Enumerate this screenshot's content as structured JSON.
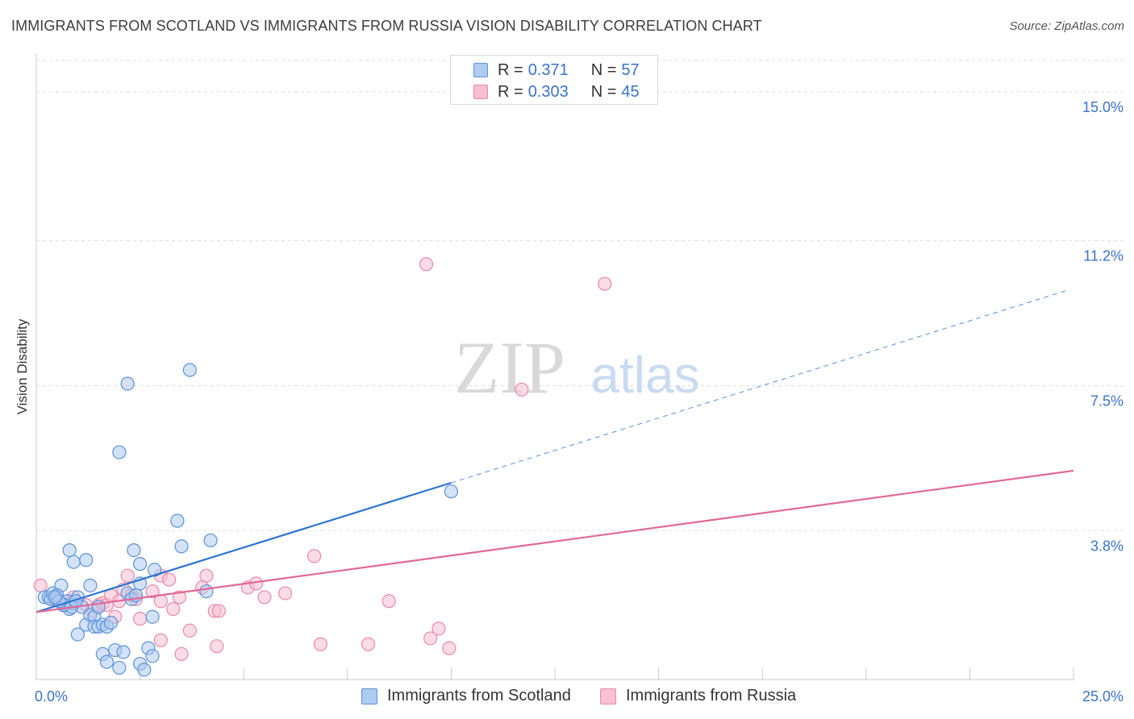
{
  "title": "IMMIGRANTS FROM SCOTLAND VS IMMIGRANTS FROM RUSSIA VISION DISABILITY CORRELATION CHART",
  "source": "Source: ZipAtlas.com",
  "watermark": {
    "zip": "ZIP",
    "atlas": "atlas"
  },
  "legend_top": {
    "r_label": "R =",
    "n_label": "N =",
    "rows": [
      {
        "name": "Immigrants from Scotland",
        "r": "0.371",
        "n": "57"
      },
      {
        "name": "Immigrants from Russia",
        "r": "0.303",
        "n": "45"
      }
    ]
  },
  "colors": {
    "scotland_fill": "#aecbf0",
    "scotland_stroke": "#5b93d8",
    "scotland_line": "#2f74d0",
    "russia_fill": "#f8c0d2",
    "russia_stroke": "#e88aa8",
    "russia_line": "#e0689a",
    "value_text": "#3a74c8",
    "grid": "#dddddd"
  },
  "chart_data": {
    "type": "scatter",
    "title": "IMMIGRANTS FROM SCOTLAND VS IMMIGRANTS FROM RUSSIA VISION DISABILITY CORRELATION CHART",
    "xlabel": "",
    "ylabel": "Vision Disability",
    "xlim": [
      0,
      25
    ],
    "ylim": [
      0,
      15.8
    ],
    "x_tick_labels": [
      {
        "value": 0,
        "label": "0.0%"
      },
      {
        "value": 25,
        "label": "25.0%"
      }
    ],
    "y_tick_labels": [
      {
        "value": 3.8,
        "label": "3.8%"
      },
      {
        "value": 7.5,
        "label": "7.5%"
      },
      {
        "value": 11.2,
        "label": "11.2%"
      },
      {
        "value": 15.0,
        "label": "15.0%"
      }
    ],
    "grid": true,
    "legend_position": "bottom-center",
    "series": [
      {
        "name": "Immigrants from Scotland",
        "r": 0.371,
        "n": 57,
        "trend": {
          "x0": 0,
          "y0": 1.72,
          "x1": 10,
          "y1": 5.02,
          "dash_x1": 24.9,
          "dash_y1": 9.95
        },
        "points": [
          [
            0.2,
            2.1
          ],
          [
            0.3,
            2.1
          ],
          [
            0.35,
            2.05
          ],
          [
            0.4,
            2.2
          ],
          [
            0.5,
            2.05
          ],
          [
            0.6,
            2.4
          ],
          [
            0.7,
            1.9
          ],
          [
            0.8,
            1.8
          ],
          [
            0.9,
            1.95
          ],
          [
            1.0,
            2.1
          ],
          [
            1.1,
            1.85
          ],
          [
            0.75,
            2.0
          ],
          [
            0.5,
            2.15
          ],
          [
            0.65,
            1.9
          ],
          [
            0.55,
            2.0
          ],
          [
            0.45,
            2.1
          ],
          [
            0.85,
            1.85
          ],
          [
            0.95,
            2.0
          ],
          [
            0.8,
            3.3
          ],
          [
            0.9,
            3.0
          ],
          [
            1.2,
            1.4
          ],
          [
            1.3,
            1.65
          ],
          [
            1.4,
            1.6
          ],
          [
            1.5,
            1.85
          ],
          [
            1.0,
            1.15
          ],
          [
            1.2,
            3.05
          ],
          [
            1.3,
            2.4
          ],
          [
            1.4,
            1.35
          ],
          [
            1.5,
            1.35
          ],
          [
            1.6,
            1.4
          ],
          [
            1.6,
            0.65
          ],
          [
            1.7,
            1.35
          ],
          [
            1.8,
            1.45
          ],
          [
            1.7,
            0.45
          ],
          [
            1.9,
            0.75
          ],
          [
            2.0,
            0.3
          ],
          [
            2.1,
            0.7
          ],
          [
            2.2,
            2.2
          ],
          [
            2.3,
            2.05
          ],
          [
            2.4,
            2.15
          ],
          [
            2.5,
            2.45
          ],
          [
            2.5,
            0.4
          ],
          [
            2.6,
            0.25
          ],
          [
            2.7,
            0.8
          ],
          [
            2.8,
            0.6
          ],
          [
            2.0,
            5.8
          ],
          [
            2.35,
            3.3
          ],
          [
            2.5,
            2.95
          ],
          [
            2.8,
            1.6
          ],
          [
            2.85,
            2.8
          ],
          [
            3.4,
            4.05
          ],
          [
            3.5,
            3.4
          ],
          [
            3.7,
            7.9
          ],
          [
            4.1,
            2.25
          ],
          [
            4.2,
            3.55
          ],
          [
            2.2,
            7.55
          ],
          [
            10.0,
            4.8
          ]
        ]
      },
      {
        "name": "Immigrants from Russia",
        "r": 0.303,
        "n": 45,
        "trend": {
          "x0": 0,
          "y0": 1.72,
          "x1": 25,
          "y1": 5.33
        },
        "points": [
          [
            0.1,
            2.4
          ],
          [
            0.4,
            2.05
          ],
          [
            0.9,
            2.1
          ],
          [
            0.8,
            1.95
          ],
          [
            1.2,
            1.9
          ],
          [
            1.35,
            1.75
          ],
          [
            1.5,
            1.9
          ],
          [
            1.6,
            1.95
          ],
          [
            1.7,
            1.9
          ],
          [
            1.8,
            2.15
          ],
          [
            1.9,
            1.6
          ],
          [
            2.0,
            2.0
          ],
          [
            2.1,
            2.3
          ],
          [
            2.2,
            2.65
          ],
          [
            2.3,
            2.15
          ],
          [
            2.4,
            2.05
          ],
          [
            2.5,
            1.55
          ],
          [
            2.8,
            2.25
          ],
          [
            3.0,
            2.0
          ],
          [
            3.0,
            2.65
          ],
          [
            3.2,
            2.55
          ],
          [
            3.0,
            1.0
          ],
          [
            3.3,
            1.8
          ],
          [
            3.45,
            2.1
          ],
          [
            3.5,
            0.65
          ],
          [
            3.7,
            1.25
          ],
          [
            4.0,
            2.35
          ],
          [
            4.1,
            2.65
          ],
          [
            4.3,
            1.75
          ],
          [
            4.4,
            1.75
          ],
          [
            4.35,
            0.85
          ],
          [
            5.1,
            2.35
          ],
          [
            5.3,
            2.45
          ],
          [
            5.5,
            2.1
          ],
          [
            6.0,
            2.2
          ],
          [
            6.7,
            3.15
          ],
          [
            6.85,
            0.9
          ],
          [
            8.0,
            0.9
          ],
          [
            8.5,
            2.0
          ],
          [
            9.5,
            1.05
          ],
          [
            9.7,
            1.3
          ],
          [
            9.95,
            0.8
          ],
          [
            9.4,
            10.6
          ],
          [
            13.7,
            10.1
          ],
          [
            11.7,
            7.4
          ]
        ]
      }
    ]
  }
}
